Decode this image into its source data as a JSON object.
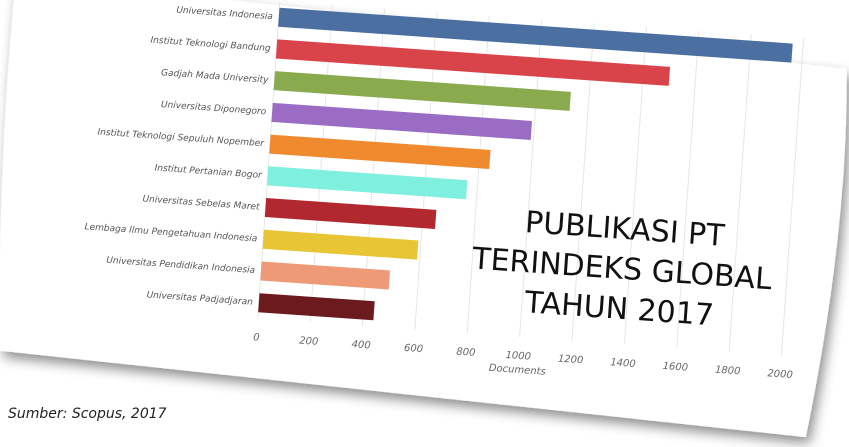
{
  "chart_data": {
    "type": "bar",
    "orientation": "horizontal",
    "categories": [
      "Universitas Indonesia",
      "Institut Teknologi Bandung",
      "Gadjah Mada University",
      "Universitas Diponegoro",
      "Institut Teknologi Sepuluh Nopember",
      "Institut Pertanian Bogor",
      "Universitas Sebelas Maret",
      "Lembaga Ilmu Pengetahuan Indonesia",
      "Universitas Pendidikan Indonesia",
      "Universitas Padjadjaran"
    ],
    "values": [
      1960,
      1500,
      1130,
      990,
      840,
      760,
      650,
      590,
      490,
      440
    ],
    "colors": [
      "#4a6fa0",
      "#d9434a",
      "#8aaa4e",
      "#9b6cc4",
      "#ef8a2f",
      "#7ff0e0",
      "#b1282e",
      "#e8c534",
      "#ef9a76",
      "#6b1a1e"
    ],
    "xlim": [
      0,
      2000
    ],
    "xticks": [
      0,
      200,
      400,
      600,
      800,
      1000,
      1200,
      1400,
      1600,
      1800,
      2000
    ],
    "xlabel": "Documents",
    "annotation": [
      "PUBLIKASI PT",
      "TERINDEKS GLOBAL",
      "TAHUN 2017"
    ],
    "source": "Sumber: Scopus, 2017"
  }
}
